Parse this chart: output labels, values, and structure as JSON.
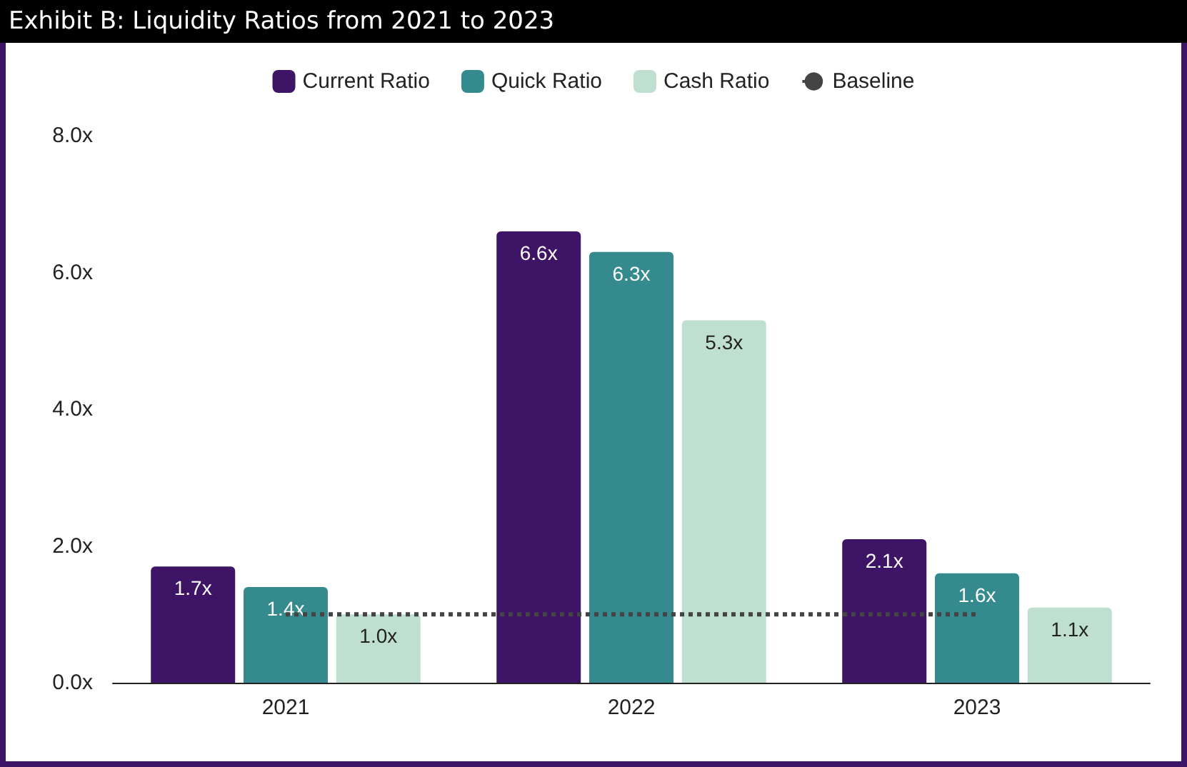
{
  "chart_data": {
    "type": "bar",
    "title": "Exhibit B: Liquidity Ratios from 2021 to 2023",
    "categories": [
      "2021",
      "2022",
      "2023"
    ],
    "series": [
      {
        "name": "Current Ratio",
        "color": "#3d1466",
        "values": [
          1.7,
          6.6,
          2.1
        ],
        "value_labels": [
          "1.7x",
          "6.6x",
          "2.1x"
        ]
      },
      {
        "name": "Quick Ratio",
        "color": "#358a8e",
        "values": [
          1.4,
          6.3,
          1.6
        ],
        "value_labels": [
          "1.4x",
          "6.3x",
          "1.6x"
        ]
      },
      {
        "name": "Cash Ratio",
        "color": "#bfdfd0",
        "values": [
          1.0,
          5.3,
          1.1
        ],
        "value_labels": [
          "1.0x",
          "5.3x",
          "1.1x"
        ]
      },
      {
        "name": "Baseline",
        "type": "line",
        "color": "#444444",
        "values": [
          1,
          1,
          1
        ],
        "line_style": "dotted",
        "marker": "none"
      }
    ],
    "ylim": [
      0,
      8
    ],
    "yticks": [
      {
        "value": 0,
        "label": "0.0x"
      },
      {
        "value": 2,
        "label": "2.0x"
      },
      {
        "value": 4,
        "label": "4.0x"
      },
      {
        "value": 6,
        "label": "6.0x"
      },
      {
        "value": 8,
        "label": "8.0x"
      }
    ],
    "grid": false,
    "legend": "top"
  }
}
